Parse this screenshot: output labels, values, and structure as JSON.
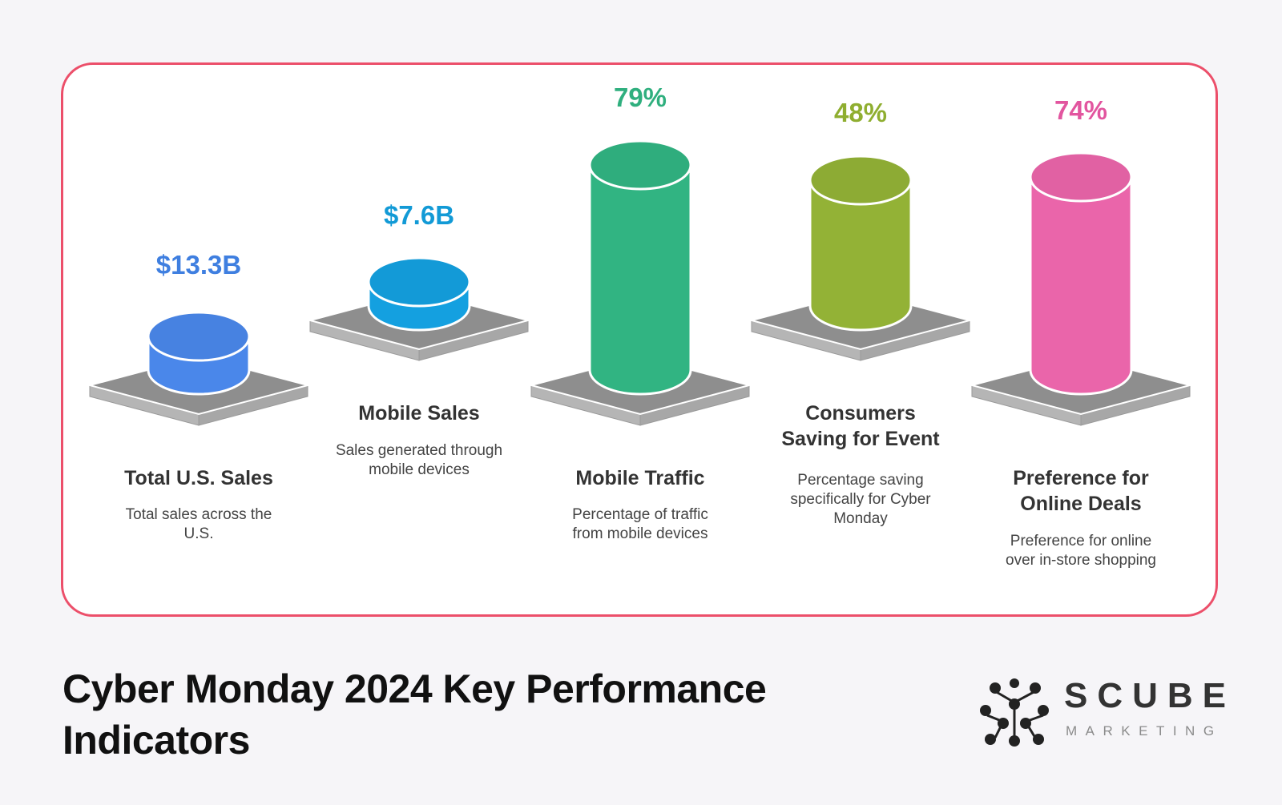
{
  "title": {
    "line1": "Cyber Monday 2024 Key Performance",
    "line2": "Indicators"
  },
  "logo": {
    "name": "SCUBE",
    "tagline": "MARKETING"
  },
  "chart_data": {
    "type": "bar",
    "title": "Cyber Monday 2024 Key Performance Indicators",
    "categories": [
      "Total U.S. Sales",
      "Mobile Sales",
      "Mobile Traffic",
      "Consumers Saving for Event",
      "Preference for Online Deals"
    ],
    "values": [
      13.3,
      7.6,
      79,
      48,
      74
    ],
    "units": [
      "$B",
      "$B",
      "%",
      "%",
      "%"
    ],
    "items": [
      {
        "value_label": "$13.3B",
        "title_lines": [
          "Total U.S. Sales"
        ],
        "desc_lines": [
          "Total sales across the",
          "U.S."
        ],
        "color": "#4a87ea"
      },
      {
        "value_label": "$7.6B",
        "title_lines": [
          "Mobile Sales"
        ],
        "desc_lines": [
          "Sales generated through",
          "mobile devices"
        ],
        "color": "#14a0e0"
      },
      {
        "value_label": "79%",
        "title_lines": [
          "Mobile Traffic"
        ],
        "desc_lines": [
          "Percentage of traffic",
          "from mobile devices"
        ],
        "color": "#31b482"
      },
      {
        "value_label": "48%",
        "title_lines": [
          "Consumers",
          "Saving for Event"
        ],
        "desc_lines": [
          "Percentage saving",
          "specifically for Cyber",
          "Monday"
        ],
        "color": "#93b236"
      },
      {
        "value_label": "74%",
        "title_lines": [
          "Preference for",
          "Online Deals"
        ],
        "desc_lines": [
          "Preference for online",
          "over in-store shopping"
        ],
        "color": "#ea65aa"
      }
    ]
  }
}
